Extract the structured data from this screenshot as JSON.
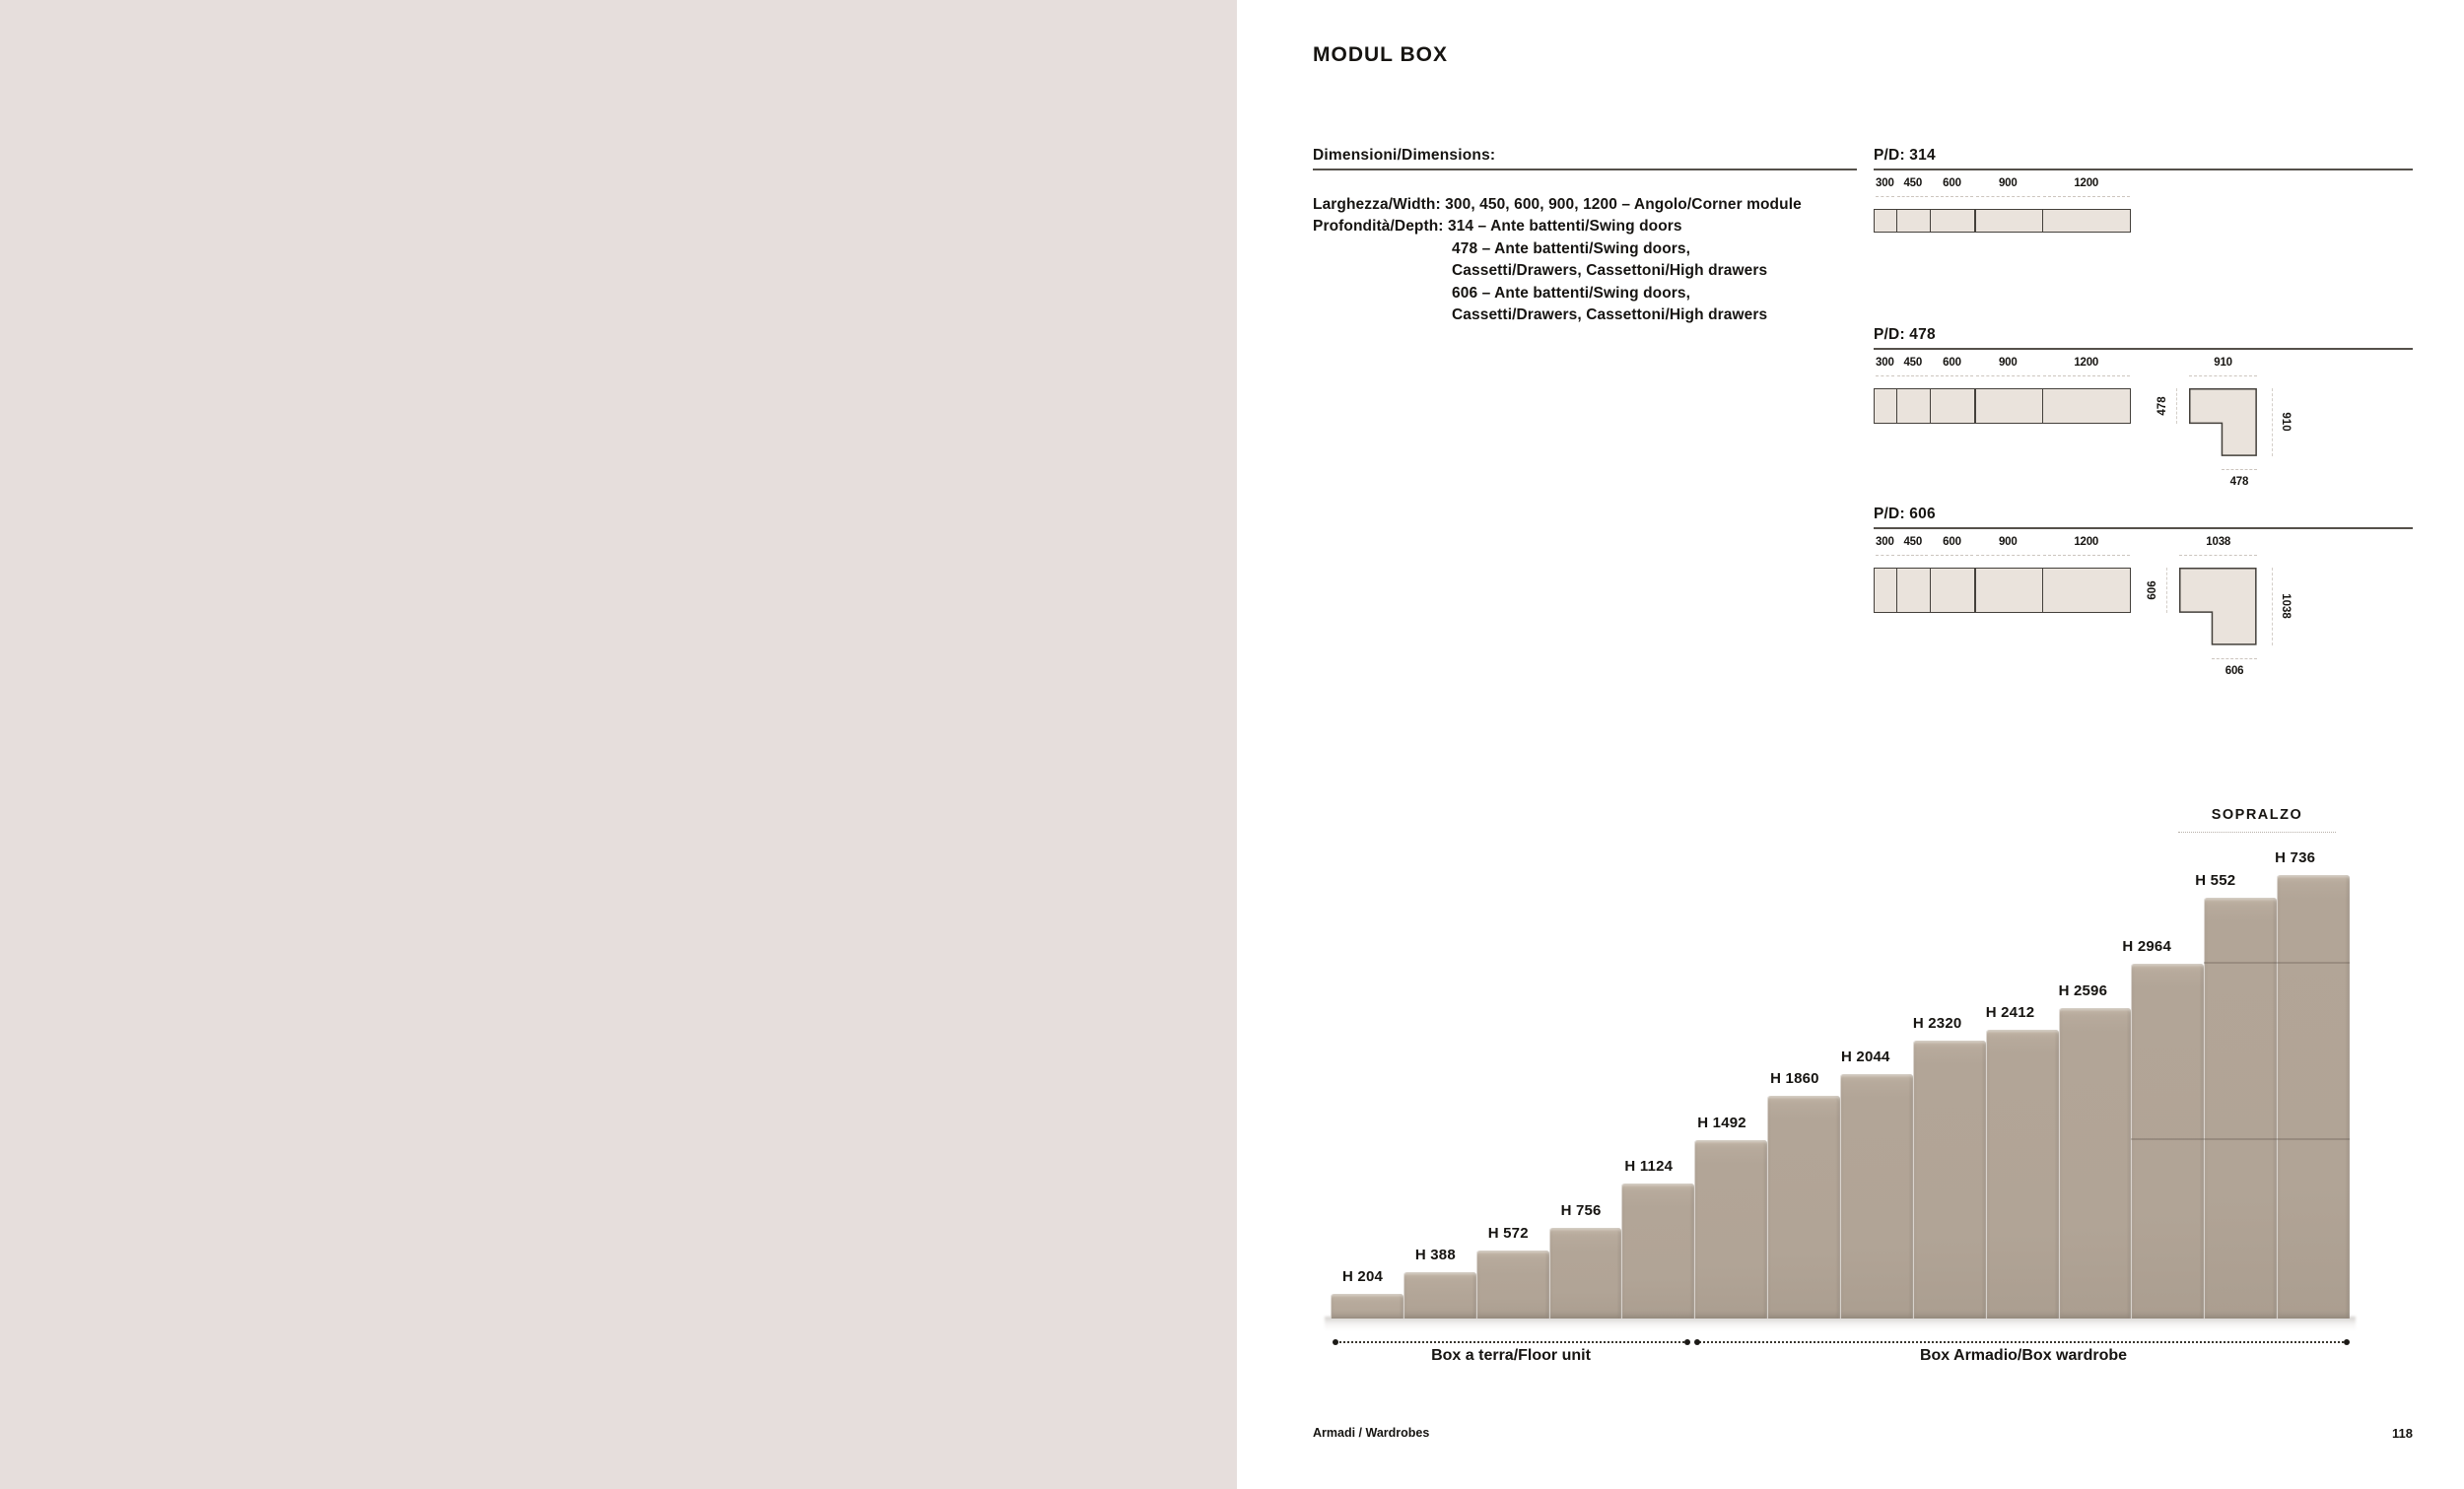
{
  "page": {
    "title": "MODUL BOX",
    "footer_left": "Armadi / Wardrobes",
    "page_number": "118"
  },
  "info": {
    "heading": "Dimensioni/Dimensions:",
    "lines": [
      {
        "indent": false,
        "text": "Larghezza/Width: 300, 450, 600, 900, 1200 – Angolo/Corner module"
      },
      {
        "indent": false,
        "text": "Profondità/Depth: 314 – Ante battenti/Swing doors"
      },
      {
        "indent": true,
        "text": "478 – Ante battenti/Swing doors,"
      },
      {
        "indent": true,
        "text": "Cassetti/Drawers, Cassettoni/High drawers"
      },
      {
        "indent": true,
        "text": "606 – Ante battenti/Swing doors,"
      },
      {
        "indent": true,
        "text": "Cassetti/Drawers, Cassettoni/High drawers"
      }
    ]
  },
  "pd_sections": [
    {
      "heading": "P/D: 314",
      "depth_mm": 314,
      "modules": [
        {
          "label": "300",
          "mm": 300
        },
        {
          "label": "450",
          "mm": 450
        },
        {
          "label": "600",
          "mm": 600
        },
        {
          "label": "900",
          "mm": 900
        },
        {
          "label": "1200",
          "mm": 1200
        }
      ],
      "corner": null
    },
    {
      "heading": "P/D: 478",
      "depth_mm": 478,
      "modules": [
        {
          "label": "300",
          "mm": 300
        },
        {
          "label": "450",
          "mm": 450
        },
        {
          "label": "600",
          "mm": 600
        },
        {
          "label": "900",
          "mm": 900
        },
        {
          "label": "1200",
          "mm": 1200
        }
      ],
      "corner": {
        "outer_mm": 910,
        "depth_mm": 478,
        "top_label": "910",
        "left_label": "478",
        "right_label": "910",
        "bottom_label": "478"
      }
    },
    {
      "heading": "P/D: 606",
      "depth_mm": 606,
      "modules": [
        {
          "label": "300",
          "mm": 300
        },
        {
          "label": "450",
          "mm": 450
        },
        {
          "label": "600",
          "mm": 600
        },
        {
          "label": "900",
          "mm": 900
        },
        {
          "label": "1200",
          "mm": 1200
        }
      ],
      "corner": {
        "outer_mm": 1038,
        "depth_mm": 606,
        "top_label": "1038",
        "left_label": "606",
        "right_label": "1038",
        "bottom_label": "606"
      }
    }
  ],
  "stairs": {
    "sopralzo_label": "SOPRALZO",
    "columns": [
      {
        "label": "H 204",
        "total_mm": 204,
        "seams_mm": []
      },
      {
        "label": "H 388",
        "total_mm": 388,
        "seams_mm": []
      },
      {
        "label": "H 572",
        "total_mm": 572,
        "seams_mm": []
      },
      {
        "label": "H 756",
        "total_mm": 756,
        "seams_mm": []
      },
      {
        "label": "H 1124",
        "total_mm": 1124,
        "seams_mm": []
      },
      {
        "label": "H 1492",
        "total_mm": 1492,
        "seams_mm": []
      },
      {
        "label": "H 1860",
        "total_mm": 1860,
        "seams_mm": []
      },
      {
        "label": "H 2044",
        "total_mm": 2044,
        "seams_mm": []
      },
      {
        "label": "H 2320",
        "total_mm": 2320,
        "seams_mm": []
      },
      {
        "label": "H 2412",
        "total_mm": 2412,
        "seams_mm": []
      },
      {
        "label": "H 2596",
        "total_mm": 2596,
        "seams_mm": []
      },
      {
        "label": "H 2964",
        "total_mm": 2964,
        "seams_mm": [
          1492
        ]
      },
      {
        "label": "H 552",
        "total_mm": 3516,
        "seams_mm": [
          1492,
          2964
        ]
      },
      {
        "label": "H 736",
        "total_mm": 3700,
        "seams_mm": [
          1492,
          2964
        ]
      }
    ],
    "groups": [
      {
        "label": "Box a terra/Floor unit"
      },
      {
        "label": "Box Armadio/Box wardrobe"
      }
    ]
  },
  "colors": {
    "left_page": "#e6dedc",
    "module_fill": "#eae3dc",
    "module_stroke": "#44403b",
    "stair_fill": "#b2a597",
    "text": "#161411"
  }
}
